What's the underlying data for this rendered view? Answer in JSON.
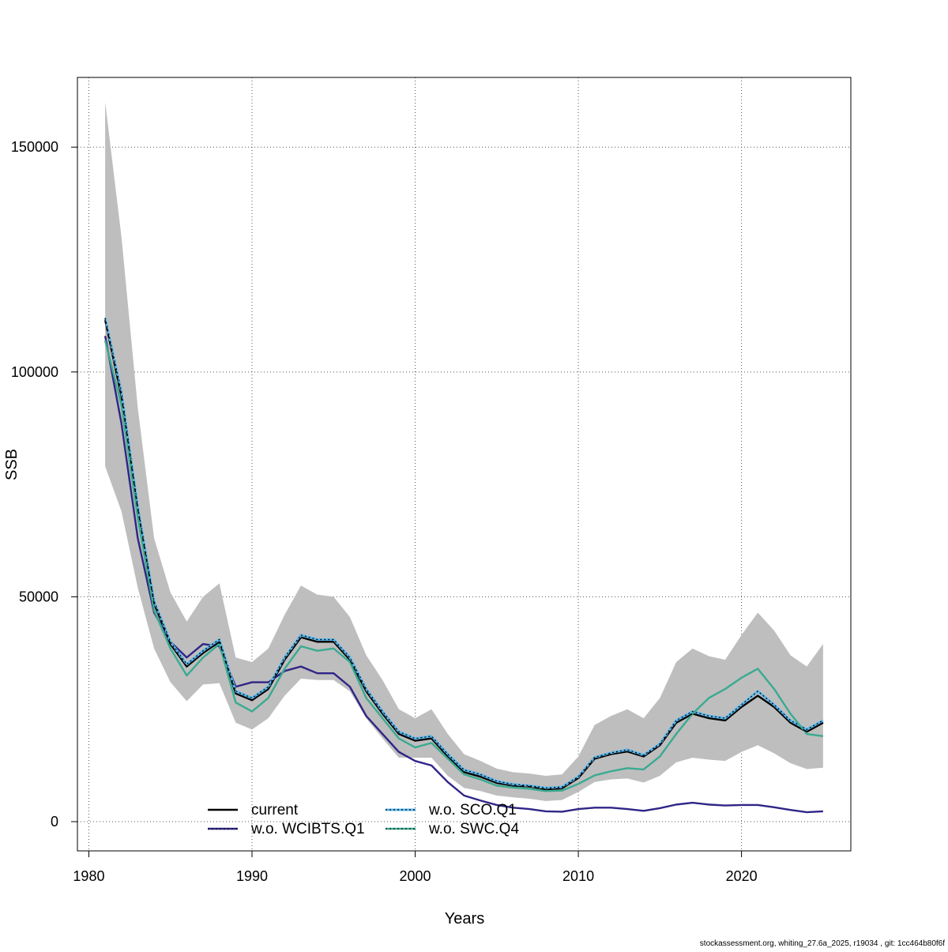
{
  "chart_data": {
    "type": "line",
    "title": "",
    "xlabel": "Years",
    "ylabel": "SSB",
    "xlim": [
      1979.3,
      2026.7
    ],
    "ylim": [
      -6500,
      165500
    ],
    "x_ticks": [
      1980,
      1990,
      2000,
      2010,
      2020
    ],
    "y_ticks": [
      0,
      50000,
      100000,
      150000
    ],
    "grid": true,
    "legend_position": "bottom-center",
    "x": [
      1981,
      1982,
      1983,
      1984,
      1985,
      1986,
      1987,
      1988,
      1989,
      1990,
      1991,
      1992,
      1993,
      1994,
      1995,
      1996,
      1997,
      1998,
      1999,
      2000,
      2001,
      2002,
      2003,
      2004,
      2005,
      2006,
      2007,
      2008,
      2009,
      2010,
      2011,
      2012,
      2013,
      2014,
      2015,
      2016,
      2017,
      2018,
      2019,
      2020,
      2021,
      2022,
      2023,
      2024,
      2025
    ],
    "confidence_band": {
      "color": "#bebebe",
      "upper": [
        160000,
        130000,
        92000,
        63000,
        51000,
        44500,
        50000,
        53000,
        36500,
        35500,
        38500,
        46000,
        52500,
        50500,
        50000,
        45500,
        37000,
        31500,
        25000,
        23000,
        25000,
        19500,
        15000,
        13500,
        11800,
        11000,
        10700,
        10200,
        10500,
        14500,
        21500,
        23500,
        25000,
        23000,
        27500,
        35500,
        38500,
        36800,
        36000,
        41500,
        46500,
        42500,
        37000,
        34500,
        39500
      ],
      "lower": [
        79000,
        69000,
        52000,
        38500,
        31000,
        26800,
        30500,
        30800,
        22000,
        20500,
        23000,
        28000,
        31800,
        31500,
        31500,
        29000,
        23000,
        18500,
        14200,
        14200,
        14200,
        10200,
        7500,
        6800,
        5800,
        5400,
        5100,
        4600,
        4800,
        6600,
        8800,
        9400,
        9600,
        8700,
        10200,
        13200,
        14200,
        13800,
        13500,
        15500,
        17000,
        15200,
        13000,
        11700,
        12000
      ]
    },
    "series": [
      {
        "name": "current",
        "color": "#000000",
        "dash": "solid",
        "values": [
          111500,
          94500,
          69500,
          48500,
          39500,
          34500,
          37500,
          40000,
          28500,
          27000,
          29500,
          36000,
          41000,
          40000,
          40000,
          36000,
          29000,
          24000,
          19500,
          18000,
          18500,
          14500,
          11000,
          10000,
          8600,
          8000,
          7800,
          7200,
          7400,
          9700,
          14000,
          15000,
          15600,
          14500,
          17000,
          22000,
          24000,
          23000,
          22500,
          25500,
          28000,
          25500,
          22000,
          20000,
          22000
        ]
      },
      {
        "name": "w.o. WCIBTS.Q1",
        "color": "#2f2586",
        "dash": "solid",
        "values": [
          108000,
          88500,
          63000,
          46500,
          40000,
          36500,
          39500,
          39000,
          30000,
          31000,
          31000,
          33500,
          34500,
          33000,
          33000,
          30000,
          23500,
          19500,
          15500,
          13500,
          12500,
          8800,
          5800,
          4700,
          3700,
          3100,
          2800,
          2300,
          2200,
          2800,
          3100,
          3100,
          2800,
          2400,
          3000,
          3800,
          4200,
          3800,
          3600,
          3700,
          3700,
          3200,
          2600,
          2100,
          2300
        ]
      },
      {
        "name": "w.o. SCO.Q1",
        "color": "#5bb8ee",
        "dash": "dotted",
        "values": [
          112000,
          95500,
          70000,
          49000,
          40000,
          35000,
          38000,
          40500,
          29000,
          27500,
          30000,
          36500,
          41500,
          40500,
          40500,
          36500,
          29500,
          24500,
          20000,
          18500,
          19000,
          15000,
          11500,
          10500,
          9000,
          8300,
          8000,
          7500,
          7700,
          10000,
          14300,
          15300,
          16000,
          14800,
          17300,
          22500,
          24500,
          23500,
          23000,
          26000,
          29000,
          26000,
          22500,
          20500,
          22500
        ]
      },
      {
        "name": "w.o. SWC.Q4",
        "color": "#3aaa90",
        "dash": "solid",
        "values": [
          107000,
          92500,
          67500,
          47000,
          38500,
          32500,
          36500,
          39500,
          26500,
          24500,
          27500,
          34000,
          39000,
          38000,
          38500,
          35500,
          27500,
          23000,
          18500,
          16500,
          17500,
          14000,
          10500,
          9400,
          8000,
          7600,
          7300,
          6800,
          6900,
          8400,
          10300,
          11200,
          11900,
          11600,
          14500,
          19500,
          24000,
          27500,
          29500,
          32000,
          34000,
          29500,
          24000,
          19500,
          19000
        ]
      }
    ]
  },
  "footer": {
    "credit": "stockassessment.org, whiting_27.6a_2025, r19034 , git: 1cc464b80f6f"
  }
}
